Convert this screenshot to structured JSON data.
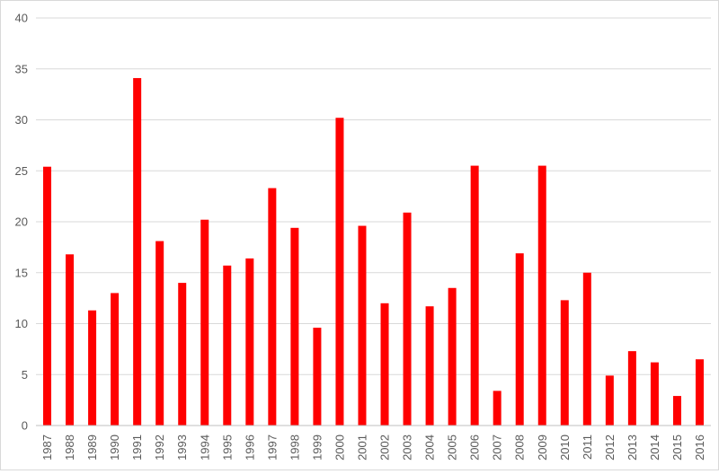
{
  "chart_data": {
    "type": "bar",
    "title": "",
    "xlabel": "",
    "ylabel": "",
    "categories": [
      "1987",
      "1988",
      "1989",
      "1990",
      "1991",
      "1992",
      "1993",
      "1994",
      "1995",
      "1996",
      "1997",
      "1998",
      "1999",
      "2000",
      "2001",
      "2002",
      "2003",
      "2004",
      "2005",
      "2006",
      "2007",
      "2008",
      "2009",
      "2010",
      "2011",
      "2012",
      "2013",
      "2014",
      "2015",
      "2016"
    ],
    "values": [
      25.4,
      16.8,
      11.3,
      13.0,
      34.1,
      18.1,
      14.0,
      20.2,
      15.7,
      16.4,
      23.3,
      19.4,
      9.6,
      30.2,
      19.6,
      12.0,
      20.9,
      11.7,
      13.5,
      25.5,
      3.4,
      16.9,
      25.5,
      12.3,
      15.0,
      4.9,
      7.3,
      6.2,
      2.9,
      6.5
    ],
    "ylim": [
      0,
      40
    ],
    "yticks": [
      "0",
      "5",
      "10",
      "15",
      "20",
      "25",
      "30",
      "35",
      "40"
    ],
    "grid": true,
    "legend": "none",
    "bar_color": "#ff0000",
    "grid_color": "#d9d9d9",
    "axis_color": "#bfbfbf",
    "label_color": "#595959"
  }
}
